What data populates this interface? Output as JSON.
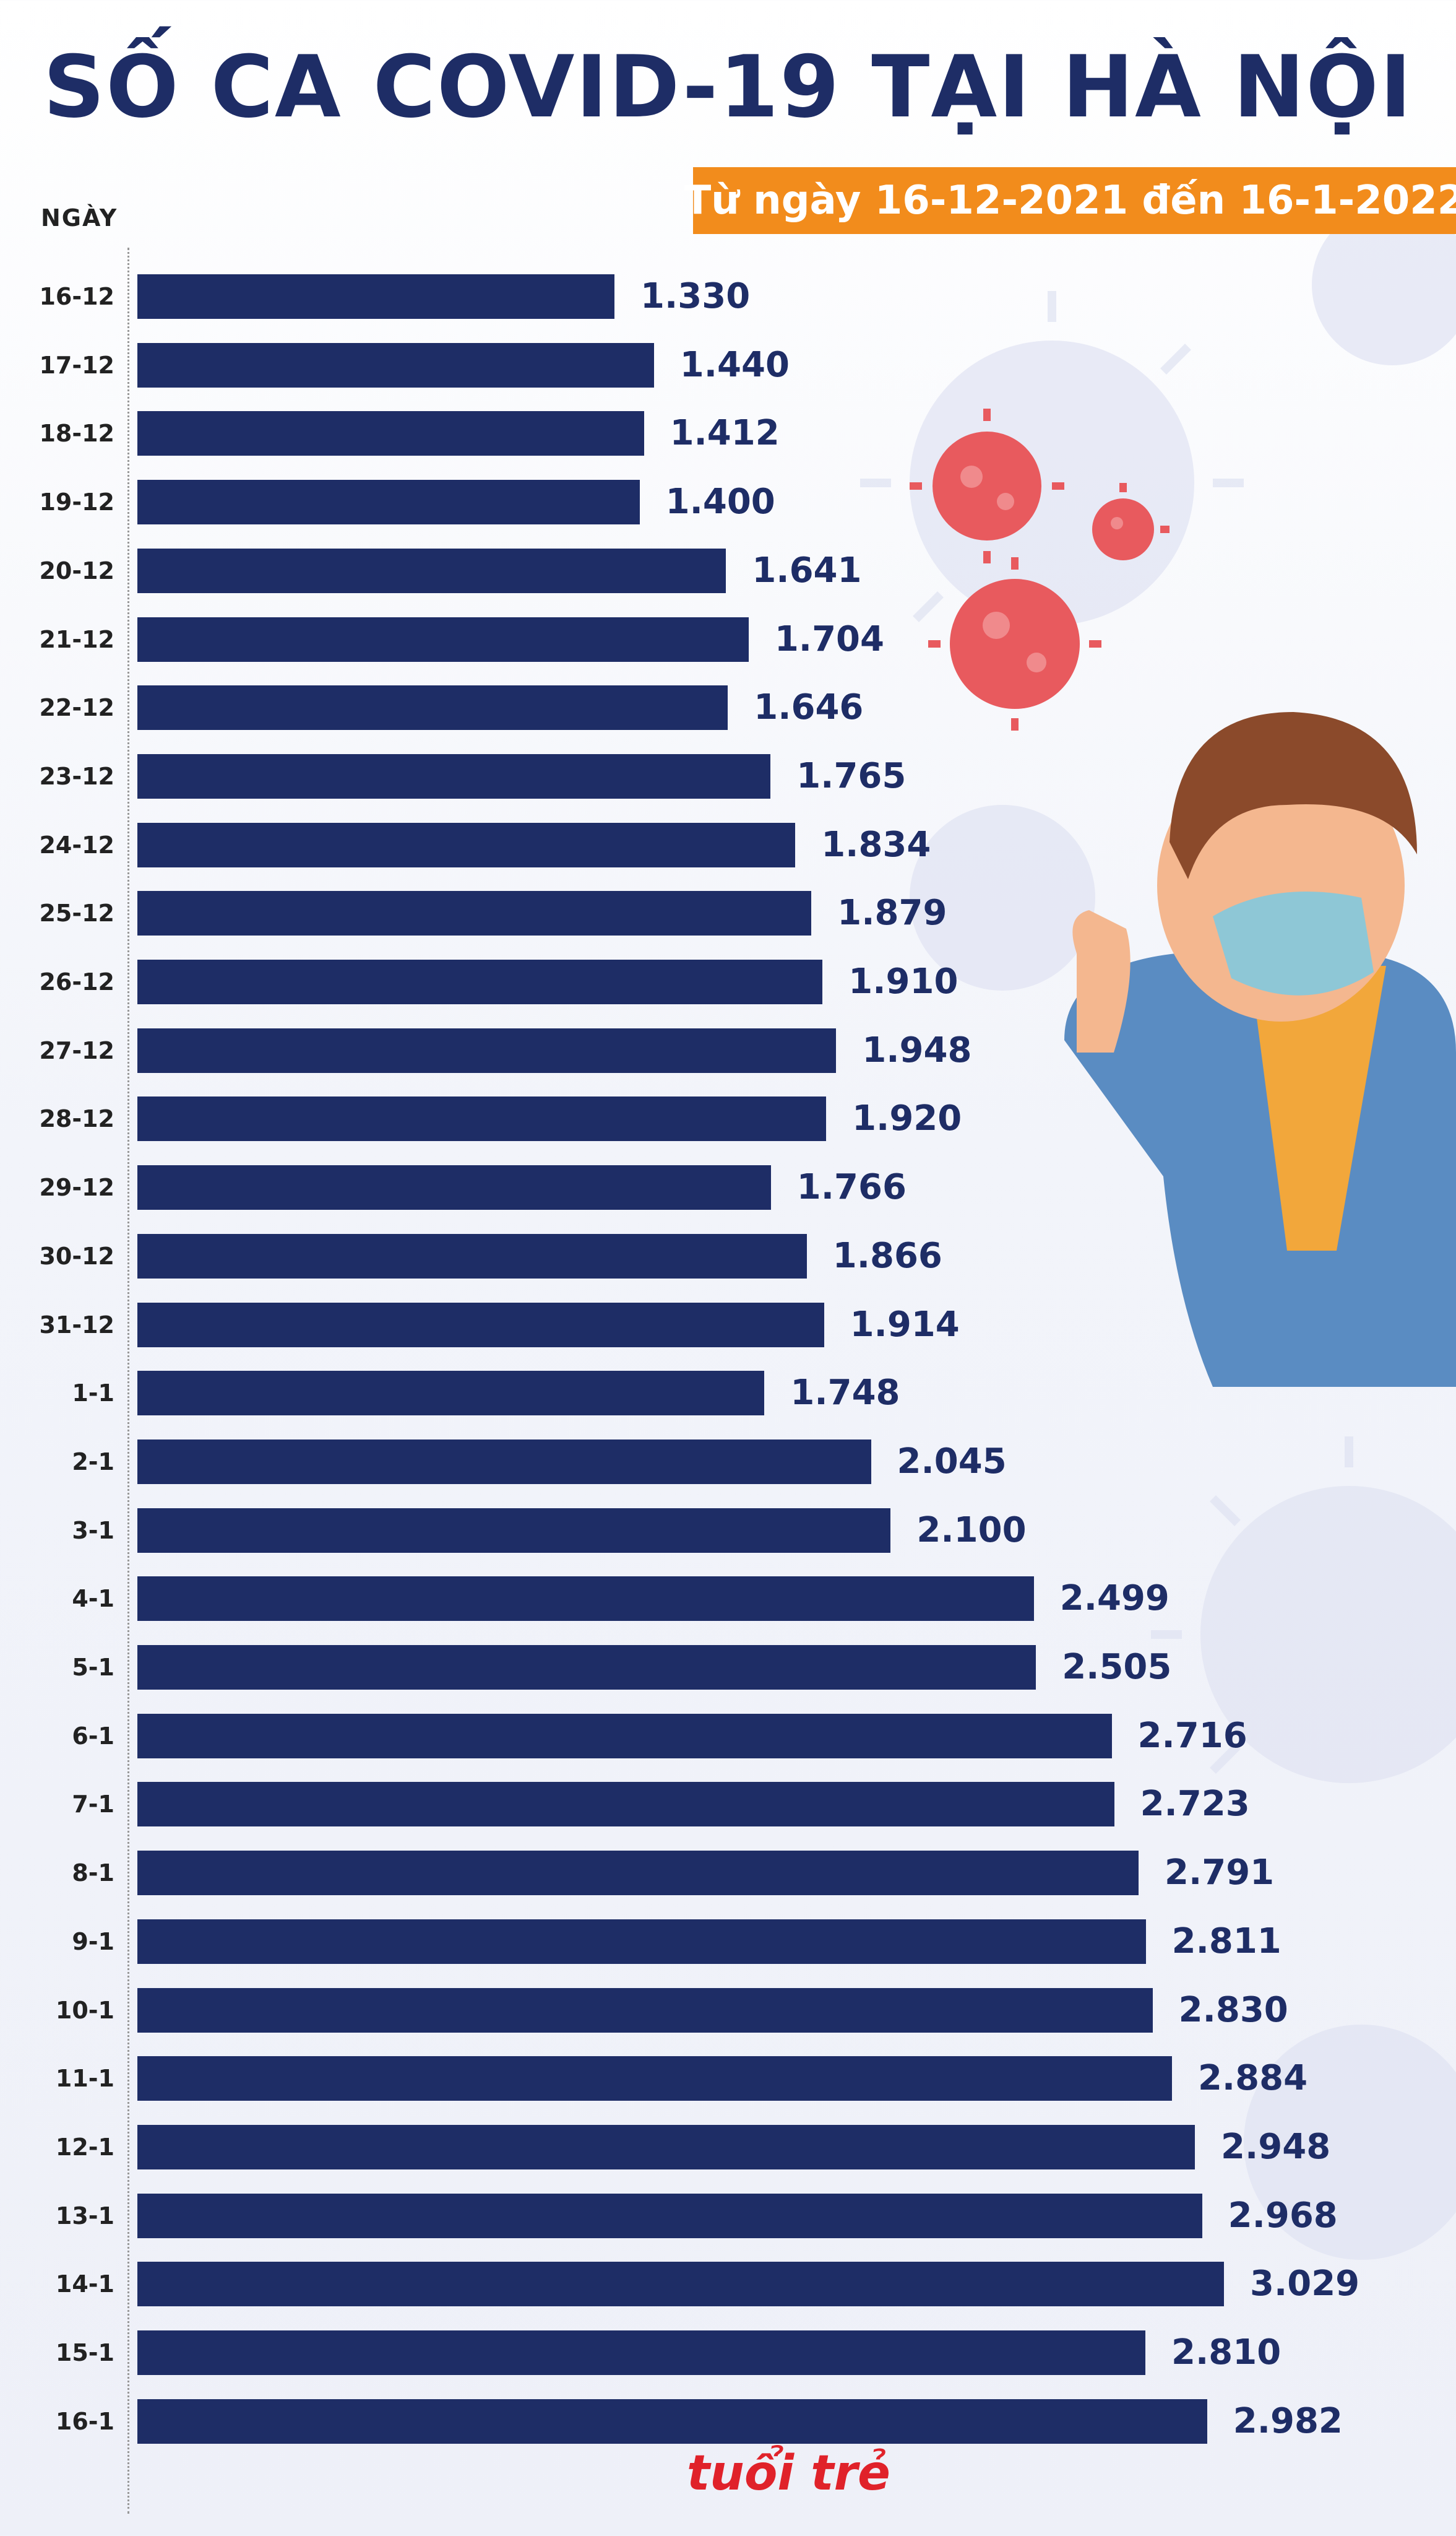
{
  "header": {
    "title": "SỐ CA COVID-19 TẠI HÀ NỘI",
    "subtitle": "Từ ngày 16-12-2021 đến 16-1-2022"
  },
  "logo": {
    "text": "tuổi trẻ"
  },
  "colors": {
    "bar": "#1e2d66",
    "accent": "#f28c1c",
    "virus": "#e85a5e",
    "logo": "#e0222a"
  },
  "chart_data": {
    "type": "bar",
    "orientation": "horizontal",
    "ylabel": "NGÀY",
    "categories": [
      "16-12",
      "17-12",
      "18-12",
      "19-12",
      "20-12",
      "21-12",
      "22-12",
      "23-12",
      "24-12",
      "25-12",
      "26-12",
      "27-12",
      "28-12",
      "29-12",
      "30-12",
      "31-12",
      "1-1",
      "2-1",
      "3-1",
      "4-1",
      "5-1",
      "6-1",
      "7-1",
      "8-1",
      "9-1",
      "10-1",
      "11-1",
      "12-1",
      "13-1",
      "14-1",
      "15-1",
      "16-1"
    ],
    "values": [
      1330,
      1440,
      1412,
      1400,
      1641,
      1704,
      1646,
      1765,
      1834,
      1879,
      1910,
      1948,
      1920,
      1766,
      1866,
      1914,
      1748,
      2045,
      2100,
      2499,
      2505,
      2716,
      2723,
      2791,
      2811,
      2830,
      2884,
      2948,
      2968,
      3029,
      2810,
      2982
    ],
    "labels": [
      "1.330",
      "1.440",
      "1.412",
      "1.400",
      "1.641",
      "1.704",
      "1.646",
      "1.765",
      "1.834",
      "1.879",
      "1.910",
      "1.948",
      "1.920",
      "1.766",
      "1.866",
      "1.914",
      "1.748",
      "2.045",
      "2.100",
      "2.499",
      "2.505",
      "2.716",
      "2.723",
      "2.791",
      "2.811",
      "2.830",
      "2.884",
      "2.948",
      "2.968",
      "3.029",
      "2.810",
      "2.982"
    ],
    "xlim": [
      0,
      3029
    ],
    "grid": false,
    "legend": "none"
  }
}
